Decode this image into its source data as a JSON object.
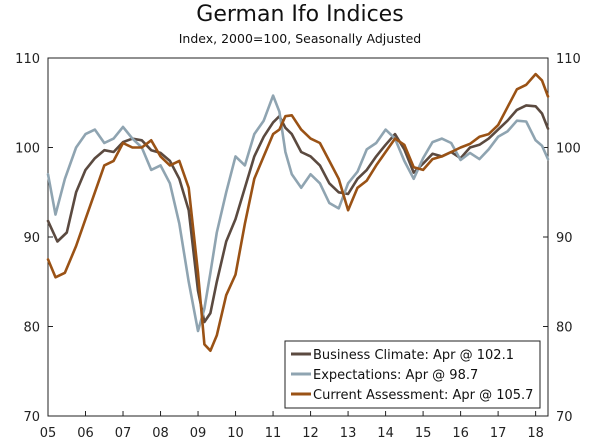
{
  "chart_data": {
    "type": "line",
    "title": "German Ifo Indices",
    "subtitle": "Index, 2000=100,  Seasonally Adjusted",
    "xlabel": "",
    "ylabel": "",
    "x_ticks": [
      "05",
      "06",
      "07",
      "08",
      "09",
      "10",
      "11",
      "12",
      "13",
      "14",
      "15",
      "16",
      "17",
      "18"
    ],
    "y_ticks": [
      70,
      80,
      90,
      100,
      110
    ],
    "ylim": [
      70,
      110
    ],
    "xlim": [
      2005.0,
      2018.33
    ],
    "legend_position": "bottom-right",
    "series": [
      {
        "name": "Business Climate",
        "legend": "Business Climate: Apr @ 102.1",
        "color": "#5b4a40",
        "points": [
          [
            2005.0,
            91.8
          ],
          [
            2005.25,
            89.5
          ],
          [
            2005.5,
            90.5
          ],
          [
            2005.75,
            95.0
          ],
          [
            2006.0,
            97.5
          ],
          [
            2006.25,
            98.8
          ],
          [
            2006.5,
            99.7
          ],
          [
            2006.75,
            99.5
          ],
          [
            2007.0,
            100.6
          ],
          [
            2007.25,
            101.0
          ],
          [
            2007.5,
            100.8
          ],
          [
            2007.75,
            99.7
          ],
          [
            2008.0,
            99.4
          ],
          [
            2008.25,
            98.5
          ],
          [
            2008.5,
            96.5
          ],
          [
            2008.75,
            93.0
          ],
          [
            2009.0,
            84.0
          ],
          [
            2009.17,
            80.5
          ],
          [
            2009.33,
            81.5
          ],
          [
            2009.5,
            85.0
          ],
          [
            2009.75,
            89.5
          ],
          [
            2010.0,
            92.0
          ],
          [
            2010.25,
            95.5
          ],
          [
            2010.5,
            99.0
          ],
          [
            2010.75,
            101.2
          ],
          [
            2011.0,
            102.8
          ],
          [
            2011.17,
            103.5
          ],
          [
            2011.33,
            102.2
          ],
          [
            2011.5,
            101.5
          ],
          [
            2011.75,
            99.5
          ],
          [
            2012.0,
            99.0
          ],
          [
            2012.25,
            98.0
          ],
          [
            2012.5,
            96.0
          ],
          [
            2012.75,
            95.0
          ],
          [
            2013.0,
            94.8
          ],
          [
            2013.25,
            96.5
          ],
          [
            2013.5,
            97.5
          ],
          [
            2013.75,
            99.0
          ],
          [
            2014.0,
            100.3
          ],
          [
            2014.25,
            101.5
          ],
          [
            2014.5,
            99.8
          ],
          [
            2014.75,
            97.2
          ],
          [
            2015.0,
            98.2
          ],
          [
            2015.25,
            99.3
          ],
          [
            2015.5,
            99.0
          ],
          [
            2015.75,
            99.5
          ],
          [
            2016.0,
            98.8
          ],
          [
            2016.25,
            100.0
          ],
          [
            2016.5,
            100.3
          ],
          [
            2016.75,
            101.0
          ],
          [
            2017.0,
            102.0
          ],
          [
            2017.25,
            103.0
          ],
          [
            2017.5,
            104.2
          ],
          [
            2017.75,
            104.7
          ],
          [
            2018.0,
            104.6
          ],
          [
            2018.17,
            103.8
          ],
          [
            2018.33,
            102.1
          ]
        ]
      },
      {
        "name": "Expectations",
        "legend": "Expectations: Apr @ 98.7",
        "color": "#8fa4b1",
        "points": [
          [
            2005.0,
            97.0
          ],
          [
            2005.2,
            92.5
          ],
          [
            2005.45,
            96.5
          ],
          [
            2005.75,
            100.0
          ],
          [
            2006.0,
            101.5
          ],
          [
            2006.25,
            102.0
          ],
          [
            2006.5,
            100.5
          ],
          [
            2006.75,
            101.0
          ],
          [
            2007.0,
            102.3
          ],
          [
            2007.25,
            101.0
          ],
          [
            2007.5,
            100.0
          ],
          [
            2007.75,
            97.5
          ],
          [
            2008.0,
            98.0
          ],
          [
            2008.25,
            96.0
          ],
          [
            2008.5,
            91.5
          ],
          [
            2008.75,
            85.0
          ],
          [
            2009.0,
            79.5
          ],
          [
            2009.17,
            82.0
          ],
          [
            2009.33,
            86.0
          ],
          [
            2009.5,
            90.5
          ],
          [
            2009.75,
            95.0
          ],
          [
            2010.0,
            99.0
          ],
          [
            2010.25,
            98.0
          ],
          [
            2010.5,
            101.5
          ],
          [
            2010.75,
            103.0
          ],
          [
            2011.0,
            105.8
          ],
          [
            2011.17,
            104.0
          ],
          [
            2011.33,
            99.5
          ],
          [
            2011.5,
            97.0
          ],
          [
            2011.75,
            95.5
          ],
          [
            2012.0,
            97.0
          ],
          [
            2012.25,
            96.0
          ],
          [
            2012.5,
            93.8
          ],
          [
            2012.75,
            93.2
          ],
          [
            2013.0,
            96.0
          ],
          [
            2013.25,
            97.3
          ],
          [
            2013.5,
            99.8
          ],
          [
            2013.75,
            100.5
          ],
          [
            2014.0,
            102.0
          ],
          [
            2014.25,
            101.0
          ],
          [
            2014.5,
            98.5
          ],
          [
            2014.75,
            96.5
          ],
          [
            2015.0,
            98.8
          ],
          [
            2015.25,
            100.6
          ],
          [
            2015.5,
            101.0
          ],
          [
            2015.75,
            100.5
          ],
          [
            2016.0,
            98.6
          ],
          [
            2016.25,
            99.4
          ],
          [
            2016.5,
            98.7
          ],
          [
            2016.75,
            99.8
          ],
          [
            2017.0,
            101.2
          ],
          [
            2017.25,
            101.8
          ],
          [
            2017.5,
            103.0
          ],
          [
            2017.75,
            102.9
          ],
          [
            2018.0,
            100.8
          ],
          [
            2018.17,
            100.2
          ],
          [
            2018.33,
            98.7
          ]
        ]
      },
      {
        "name": "Current Assessment",
        "legend": "Current Assessment: Apr @ 105.7",
        "color": "#9a5215",
        "points": [
          [
            2005.0,
            87.5
          ],
          [
            2005.2,
            85.5
          ],
          [
            2005.45,
            86.0
          ],
          [
            2005.75,
            89.0
          ],
          [
            2006.0,
            92.0
          ],
          [
            2006.25,
            95.0
          ],
          [
            2006.5,
            98.0
          ],
          [
            2006.75,
            98.5
          ],
          [
            2007.0,
            100.5
          ],
          [
            2007.25,
            100.0
          ],
          [
            2007.5,
            100.0
          ],
          [
            2007.75,
            100.8
          ],
          [
            2008.0,
            99.0
          ],
          [
            2008.25,
            98.0
          ],
          [
            2008.5,
            98.5
          ],
          [
            2008.75,
            95.5
          ],
          [
            2009.0,
            86.0
          ],
          [
            2009.17,
            78.0
          ],
          [
            2009.33,
            77.3
          ],
          [
            2009.5,
            79.0
          ],
          [
            2009.75,
            83.5
          ],
          [
            2010.0,
            85.8
          ],
          [
            2010.25,
            91.5
          ],
          [
            2010.5,
            96.5
          ],
          [
            2010.75,
            99.0
          ],
          [
            2011.0,
            101.5
          ],
          [
            2011.17,
            102.0
          ],
          [
            2011.33,
            103.5
          ],
          [
            2011.5,
            103.6
          ],
          [
            2011.75,
            102.0
          ],
          [
            2012.0,
            101.0
          ],
          [
            2012.25,
            100.5
          ],
          [
            2012.5,
            98.5
          ],
          [
            2012.75,
            96.5
          ],
          [
            2013.0,
            93.0
          ],
          [
            2013.25,
            95.5
          ],
          [
            2013.5,
            96.3
          ],
          [
            2013.75,
            98.0
          ],
          [
            2014.0,
            99.5
          ],
          [
            2014.25,
            101.0
          ],
          [
            2014.5,
            100.3
          ],
          [
            2014.75,
            97.8
          ],
          [
            2015.0,
            97.5
          ],
          [
            2015.25,
            98.7
          ],
          [
            2015.5,
            99.0
          ],
          [
            2015.75,
            99.5
          ],
          [
            2016.0,
            100.0
          ],
          [
            2016.25,
            100.4
          ],
          [
            2016.5,
            101.2
          ],
          [
            2016.75,
            101.5
          ],
          [
            2017.0,
            102.5
          ],
          [
            2017.25,
            104.5
          ],
          [
            2017.5,
            106.5
          ],
          [
            2017.75,
            107.0
          ],
          [
            2018.0,
            108.2
          ],
          [
            2018.17,
            107.5
          ],
          [
            2018.33,
            105.7
          ]
        ]
      }
    ]
  }
}
